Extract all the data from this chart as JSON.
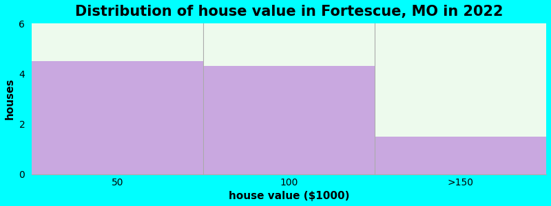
{
  "title": "Distribution of house value in Fortescue, MO in 2022",
  "categories": [
    "50",
    "100",
    ">150"
  ],
  "values": [
    4.5,
    4.3,
    1.5
  ],
  "bar_color": "#c9a8e0",
  "background_color": "#00ffff",
  "plot_bg_color": "#edfaed",
  "xlabel": "house value ($1000)",
  "ylabel": "houses",
  "ylim": [
    0,
    6
  ],
  "yticks": [
    0,
    2,
    4,
    6
  ],
  "title_fontsize": 15,
  "axis_label_fontsize": 11,
  "tick_fontsize": 10,
  "separator_color": "#aaaaaa"
}
